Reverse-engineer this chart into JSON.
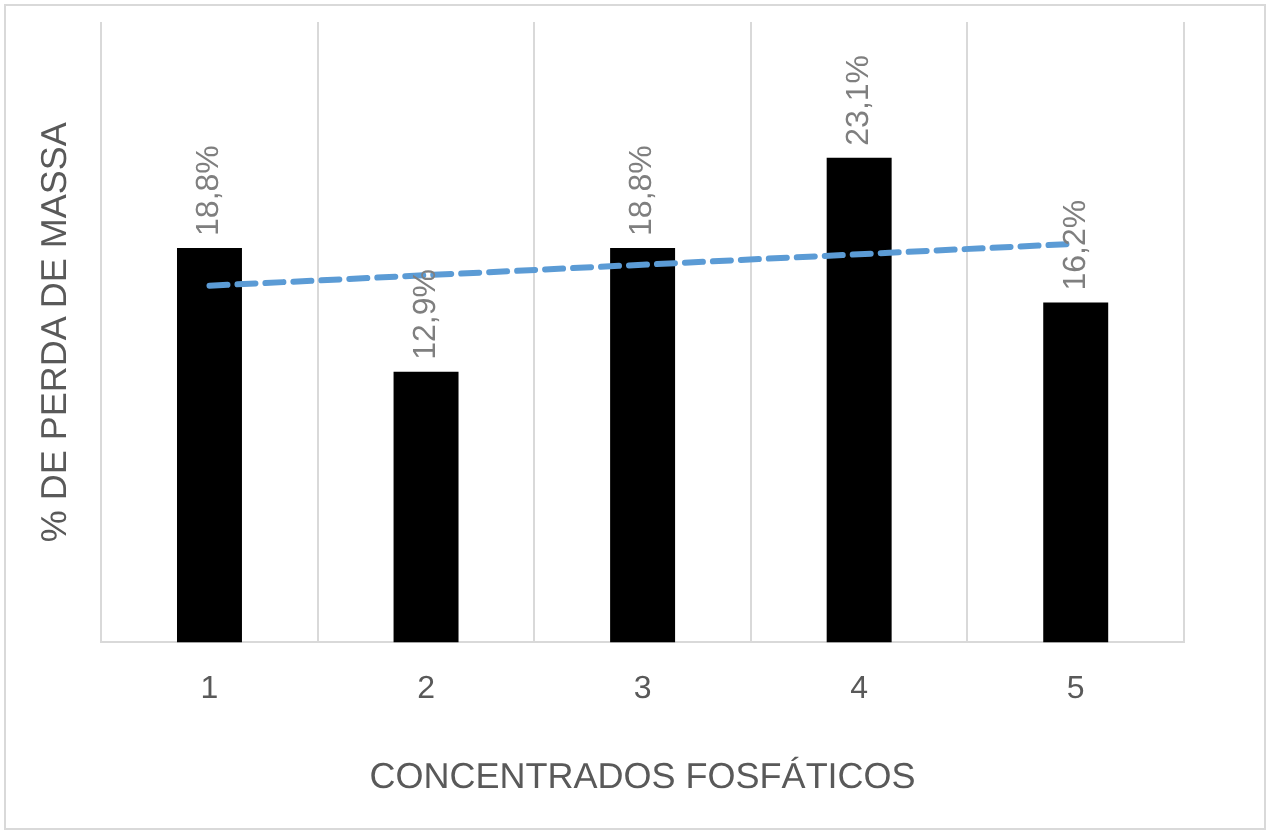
{
  "chart_data": {
    "type": "bar",
    "xlabel": "CONCENTRADOS FOSFÁTICOS",
    "ylabel": "% DE PERDA DE MASSA",
    "categories": [
      "1",
      "2",
      "3",
      "4",
      "5"
    ],
    "series": [
      {
        "color": "#000000",
        "values": [
          18.8,
          12.9,
          18.8,
          23.1,
          16.2
        ],
        "value_labels": [
          "18,8%",
          "12,9%",
          "18,8%",
          "23,1%",
          "16,2%"
        ]
      },
      {
        "type": "line",
        "color": "#5b9bd5",
        "line_style": "dashed",
        "marker": "none",
        "x": [
          "1",
          "5"
        ],
        "values": [
          17.0,
          19.0
        ]
      }
    ],
    "grid": "x",
    "legend": false,
    "tick_labels": "x"
  }
}
